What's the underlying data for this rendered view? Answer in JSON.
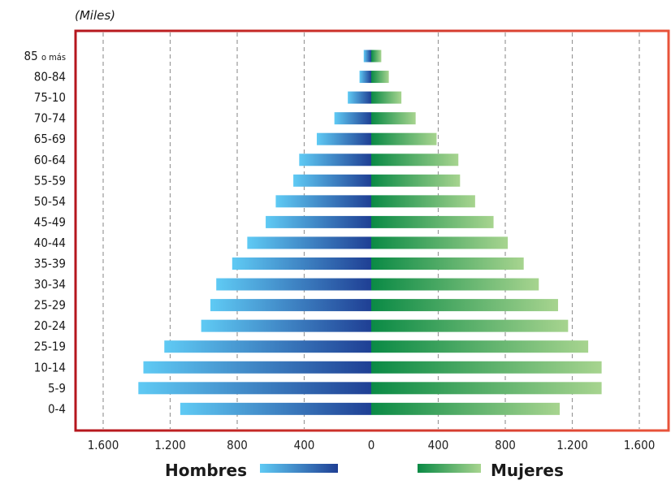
{
  "chart_data": {
    "type": "bar",
    "orientation": "horizontal-population-pyramid",
    "unit_label": "(Miles)",
    "categories": [
      "85 o más",
      "80-84",
      "75-10",
      "70-74",
      "65-69",
      "60-64",
      "55-59",
      "50-54",
      "45-49",
      "40-44",
      "35-39",
      "30-34",
      "25-29",
      "20-24",
      "25-19",
      "10-14",
      "5-9",
      "0-4"
    ],
    "series": [
      {
        "name": "Hombres",
        "values": [
          45,
          70,
          140,
          220,
          325,
          430,
          465,
          570,
          630,
          740,
          830,
          925,
          960,
          1015,
          1235,
          1360,
          1390,
          1140
        ]
      },
      {
        "name": "Mujeres",
        "values": [
          60,
          105,
          180,
          265,
          390,
          520,
          530,
          620,
          730,
          815,
          910,
          1000,
          1115,
          1175,
          1295,
          1375,
          1375,
          1125
        ]
      }
    ],
    "x_ticks": [
      -1600,
      -1200,
      -800,
      -400,
      0,
      400,
      800,
      1200,
      1600
    ],
    "x_tick_labels": [
      "1.600",
      "1.200",
      "800",
      "400",
      "0",
      "400",
      "800",
      "1.200",
      "1.600"
    ],
    "xlim": [
      -1600,
      1600
    ],
    "grid": "vertical-dashed",
    "legend": "bottom",
    "colors": {
      "hombres_light": "#5fcaf4",
      "hombres_dark": "#1f3f94",
      "mujeres_dark": "#0a8a45",
      "mujeres_light": "#a7d48f",
      "frame_left": "#b5161d",
      "frame_right": "#e8533a",
      "grid": "#9a9a9a"
    }
  }
}
